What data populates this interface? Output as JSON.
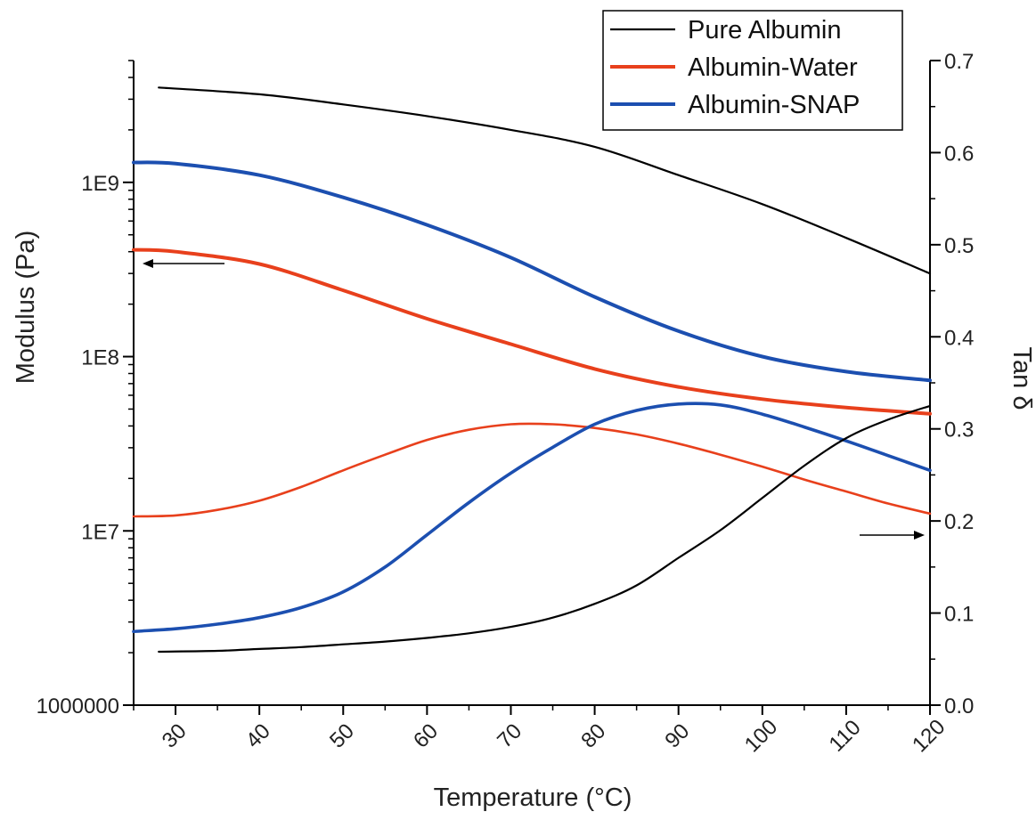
{
  "chart_data": {
    "type": "line",
    "title": "",
    "xlabel": "Temperature (°C)",
    "ylabel_left": "Modulus (Pa)",
    "ylabel_right": "Tan δ",
    "xlim": [
      25,
      120
    ],
    "xticks": [
      30,
      40,
      50,
      60,
      70,
      80,
      90,
      100,
      110,
      120
    ],
    "ylim_left": [
      1000000,
      5000000000
    ],
    "yscale_left": "log",
    "yticks_left": [
      {
        "value": 1000000,
        "label": "1000000"
      },
      {
        "value": 10000000,
        "label": "1E7"
      },
      {
        "value": 100000000,
        "label": "1E8"
      },
      {
        "value": 1000000000,
        "label": "1E9"
      }
    ],
    "ylim_right": [
      0.0,
      0.7
    ],
    "yticks_right": [
      {
        "value": 0.0,
        "label": "0.0"
      },
      {
        "value": 0.1,
        "label": "0.1"
      },
      {
        "value": 0.2,
        "label": "0.2"
      },
      {
        "value": 0.3,
        "label": "0.3"
      },
      {
        "value": 0.4,
        "label": "0.4"
      },
      {
        "value": 0.5,
        "label": "0.5"
      },
      {
        "value": 0.6,
        "label": "0.6"
      },
      {
        "value": 0.7,
        "label": "0.7"
      }
    ],
    "grid": false,
    "legend_position": "top-right",
    "legend": [
      {
        "label": "Pure Albumin",
        "color": "#000000"
      },
      {
        "label": "Albumin-Water",
        "color": "#e8401c"
      },
      {
        "label": "Albumin-SNAP",
        "color": "#1c4fb0"
      }
    ],
    "series": [
      {
        "name": "Pure Albumin",
        "axis": "left",
        "color": "#000000",
        "x": [
          28,
          40,
          50,
          60,
          70,
          80,
          90,
          100,
          110,
          120
        ],
        "y": [
          3500000000,
          3200000000,
          2800000000,
          2400000000,
          2000000000,
          1600000000,
          1100000000,
          750000000,
          480000000,
          300000000
        ]
      },
      {
        "name": "Albumin-SNAP",
        "axis": "left",
        "color": "#1c4fb0",
        "x": [
          25,
          30,
          40,
          50,
          60,
          70,
          80,
          90,
          100,
          110,
          120
        ],
        "y": [
          1300000000,
          1280000000,
          1100000000,
          820000000,
          570000000,
          370000000,
          220000000,
          140000000,
          100000000,
          82000000,
          73000000
        ]
      },
      {
        "name": "Albumin-Water",
        "axis": "left",
        "color": "#e8401c",
        "x": [
          25,
          30,
          40,
          50,
          60,
          70,
          80,
          90,
          100,
          110,
          120
        ],
        "y": [
          410000000,
          400000000,
          340000000,
          240000000,
          165000000,
          118000000,
          85000000,
          67000000,
          57000000,
          51000000,
          47000000
        ]
      },
      {
        "name": "Albumin-Water",
        "axis": "right",
        "color": "#e8401c",
        "x": [
          25,
          30,
          35,
          40,
          45,
          50,
          55,
          60,
          65,
          70,
          75,
          80,
          85,
          90,
          95,
          100,
          105,
          110,
          115,
          120
        ],
        "y": [
          0.205,
          0.206,
          0.212,
          0.222,
          0.237,
          0.255,
          0.272,
          0.288,
          0.299,
          0.305,
          0.305,
          0.301,
          0.294,
          0.284,
          0.272,
          0.259,
          0.245,
          0.232,
          0.219,
          0.208
        ]
      },
      {
        "name": "Albumin-SNAP",
        "axis": "right",
        "color": "#1c4fb0",
        "x": [
          25,
          30,
          35,
          40,
          45,
          50,
          55,
          60,
          65,
          70,
          75,
          80,
          85,
          90,
          95,
          100,
          105,
          110,
          115,
          120
        ],
        "y": [
          0.08,
          0.083,
          0.088,
          0.095,
          0.106,
          0.123,
          0.15,
          0.185,
          0.22,
          0.252,
          0.28,
          0.305,
          0.32,
          0.327,
          0.326,
          0.316,
          0.302,
          0.287,
          0.271,
          0.255
        ]
      },
      {
        "name": "Pure Albumin",
        "axis": "right",
        "color": "#000000",
        "x": [
          28,
          35,
          40,
          45,
          50,
          55,
          60,
          65,
          70,
          75,
          80,
          85,
          90,
          95,
          100,
          105,
          110,
          115,
          120
        ],
        "y": [
          0.058,
          0.059,
          0.061,
          0.063,
          0.066,
          0.069,
          0.073,
          0.078,
          0.085,
          0.095,
          0.11,
          0.13,
          0.16,
          0.19,
          0.225,
          0.26,
          0.29,
          0.31,
          0.325
        ]
      }
    ]
  }
}
